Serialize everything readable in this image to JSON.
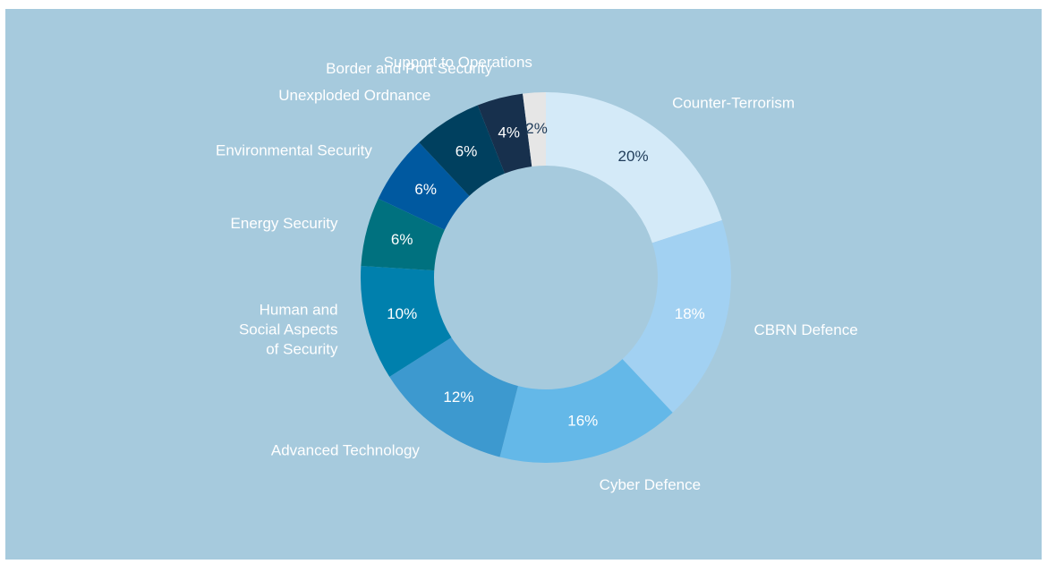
{
  "chart_data": {
    "type": "donut",
    "categories": [
      "Counter-Terrorism",
      "CBRN Defence",
      "Cyber Defence",
      "Advanced Technology",
      "Human and Social Aspects of Security",
      "Energy Security",
      "Environmental Security",
      "Unexploded Ordnance",
      "Border and Port Security",
      "Support to Operations"
    ],
    "values": [
      20,
      18,
      16,
      12,
      10,
      6,
      6,
      6,
      4,
      2
    ],
    "value_labels": [
      "20%",
      "18%",
      "16%",
      "12%",
      "10%",
      "6%",
      "6%",
      "6%",
      "4%",
      "2%"
    ],
    "colors": [
      "#d4eaf8",
      "#a2d1f2",
      "#64b8e8",
      "#3d99cf",
      "#0080ad",
      "#00717f",
      "#0059a0",
      "#00405f",
      "#17304d",
      "#e6e6e6"
    ]
  }
}
